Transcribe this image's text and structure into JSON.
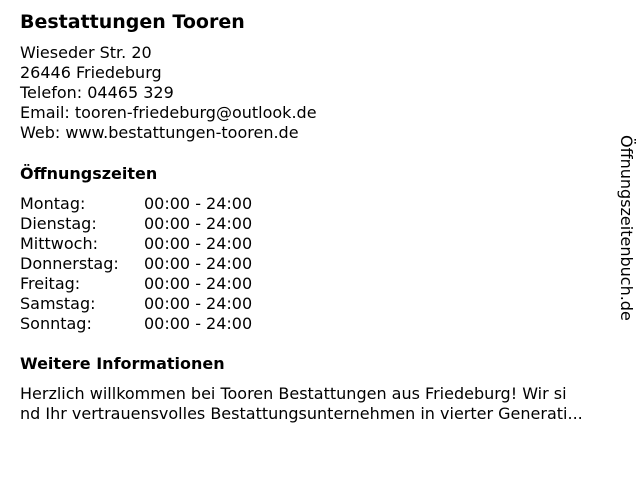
{
  "business": {
    "name": "Bestattungen Tooren",
    "street": "Wieseder Str. 20",
    "city": "26446 Friedeburg",
    "phone": "Telefon: 04465 329",
    "email": "Email: tooren-friedeburg@outlook.de",
    "web": "Web: www.bestattungen-tooren.de"
  },
  "hours": {
    "heading": "Öffnungszeiten",
    "rows": [
      {
        "day": "Montag:",
        "time": "00:00 - 24:00"
      },
      {
        "day": "Dienstag:",
        "time": "00:00 - 24:00"
      },
      {
        "day": "Mittwoch:",
        "time": "00:00 - 24:00"
      },
      {
        "day": "Donnerstag:",
        "time": "00:00 - 24:00"
      },
      {
        "day": "Freitag:",
        "time": "00:00 - 24:00"
      },
      {
        "day": "Samstag:",
        "time": "00:00 - 24:00"
      },
      {
        "day": "Sonntag:",
        "time": "00:00 - 24:00"
      }
    ]
  },
  "info": {
    "heading": "Weitere Informationen",
    "line1": "Herzlich willkommen bei Tooren Bestattungen aus Friedeburg! Wir si",
    "line2": "nd Ihr vertrauensvolles Bestattungsunternehmen in vierter Generati..."
  },
  "watermark": "Öffnungszeitenbuch.de"
}
